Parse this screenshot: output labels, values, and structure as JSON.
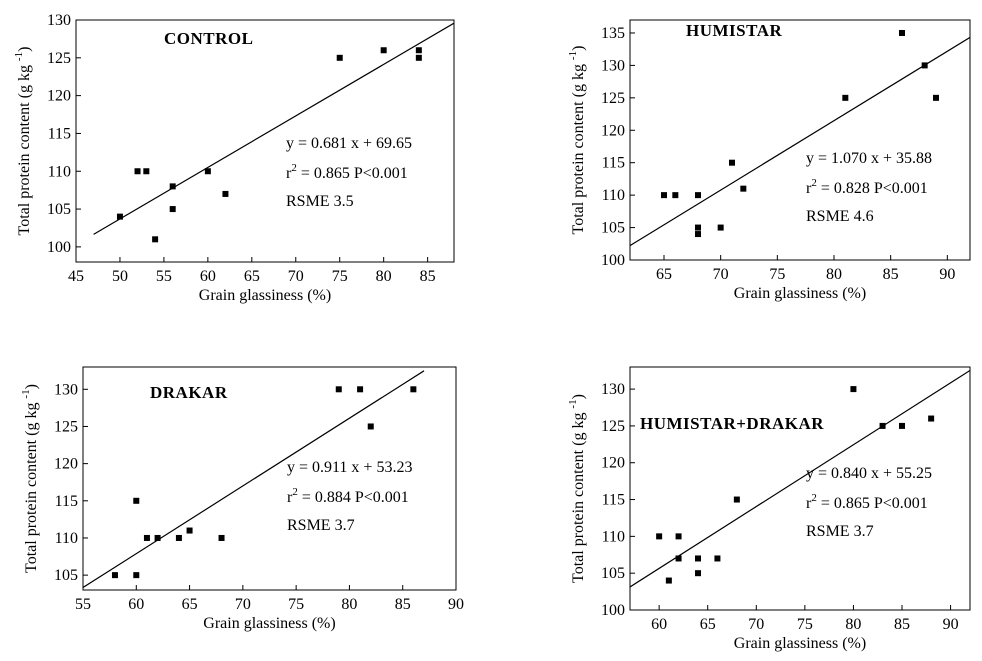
{
  "chart_data": [
    {
      "type": "scatter",
      "title": "CONTROL",
      "xlabel": "Grain glassiness (%)",
      "ylabel": "Total protein content (g kg",
      "ylabel_sup": "-1",
      "ylabel_close": ")",
      "xlim": [
        45,
        88
      ],
      "ylim": [
        98,
        130
      ],
      "xticks": [
        45,
        50,
        55,
        60,
        65,
        70,
        75,
        80,
        85
      ],
      "yticks": [
        100,
        105,
        110,
        115,
        120,
        125,
        130
      ],
      "points": [
        [
          50,
          104
        ],
        [
          52,
          110
        ],
        [
          53,
          110
        ],
        [
          54,
          101
        ],
        [
          56,
          108
        ],
        [
          56,
          105
        ],
        [
          60,
          110
        ],
        [
          62,
          107
        ],
        [
          75,
          125
        ],
        [
          80,
          126
        ],
        [
          84,
          126
        ],
        [
          84,
          125
        ]
      ],
      "fit": {
        "slope": 0.681,
        "intercept": 69.65,
        "x_range": [
          47,
          88
        ]
      },
      "equation": "y = 0.681 x + 69.65",
      "r2_prefix": "r",
      "r2_sup": "2",
      "r2_rest": " = 0.865  P<0.001",
      "rsme": "RSME 3.5",
      "grid": false
    },
    {
      "type": "scatter",
      "title": "HUMISTAR",
      "xlabel": "Grain glassiness (%)",
      "ylabel": "Total protein content (g kg",
      "ylabel_sup": "-1",
      "ylabel_close": ")",
      "xlim": [
        62,
        92
      ],
      "ylim": [
        100,
        137
      ],
      "xticks": [
        65,
        70,
        75,
        80,
        85,
        90
      ],
      "yticks": [
        100,
        105,
        110,
        115,
        120,
        125,
        130,
        135
      ],
      "points": [
        [
          65,
          110
        ],
        [
          66,
          110
        ],
        [
          68,
          110
        ],
        [
          68,
          105
        ],
        [
          68,
          104
        ],
        [
          70,
          105
        ],
        [
          71,
          115
        ],
        [
          72,
          111
        ],
        [
          81,
          125
        ],
        [
          86,
          135
        ],
        [
          88,
          130
        ],
        [
          89,
          125
        ]
      ],
      "fit": {
        "slope": 1.07,
        "intercept": 35.88,
        "x_range": [
          62,
          92
        ]
      },
      "equation": "y = 1.070 x + 35.88",
      "r2_prefix": "r",
      "r2_sup": "2",
      "r2_rest": " = 0.828  P<0.001",
      "rsme": "RSME 4.6",
      "grid": false
    },
    {
      "type": "scatter",
      "title": "DRAKAR",
      "xlabel": "Grain glassiness (%)",
      "ylabel": "Total protein content (g kg",
      "ylabel_sup": "-1",
      "ylabel_close": ")",
      "xlim": [
        55,
        90
      ],
      "ylim": [
        103,
        133
      ],
      "xticks": [
        55,
        60,
        65,
        70,
        75,
        80,
        85,
        90
      ],
      "yticks": [
        105,
        110,
        115,
        120,
        125,
        130
      ],
      "points": [
        [
          58,
          105
        ],
        [
          60,
          105
        ],
        [
          60,
          115
        ],
        [
          61,
          110
        ],
        [
          62,
          110
        ],
        [
          64,
          110
        ],
        [
          65,
          111
        ],
        [
          68,
          110
        ],
        [
          79,
          130
        ],
        [
          81,
          130
        ],
        [
          82,
          125
        ],
        [
          86,
          130
        ]
      ],
      "fit": {
        "slope": 0.911,
        "intercept": 53.23,
        "x_range": [
          55,
          87
        ]
      },
      "equation": "y = 0.911 x + 53.23",
      "r2_prefix": "r",
      "r2_sup": "2",
      "r2_rest": " = 0.884  P<0.001",
      "rsme": "RSME 3.7",
      "grid": false
    },
    {
      "type": "scatter",
      "title": "HUMISTAR+DRAKAR",
      "xlabel": "Grain glassiness (%)",
      "ylabel": "Total protein content (g kg",
      "ylabel_sup": "-1",
      "ylabel_close": ")",
      "xlim": [
        57,
        92
      ],
      "ylim": [
        100,
        133
      ],
      "xticks": [
        60,
        65,
        70,
        75,
        80,
        85,
        90
      ],
      "yticks": [
        100,
        105,
        110,
        115,
        120,
        125,
        130
      ],
      "points": [
        [
          60,
          110
        ],
        [
          61,
          104
        ],
        [
          62,
          110
        ],
        [
          62,
          107
        ],
        [
          64,
          107
        ],
        [
          64,
          105
        ],
        [
          66,
          107
        ],
        [
          68,
          115
        ],
        [
          80,
          130
        ],
        [
          83,
          125
        ],
        [
          85,
          125
        ],
        [
          88,
          126
        ]
      ],
      "fit": {
        "slope": 0.84,
        "intercept": 55.25,
        "x_range": [
          57,
          92
        ]
      },
      "equation": "y = 0.840 x + 55.25",
      "r2_prefix": "r",
      "r2_sup": "2",
      "r2_rest": " = 0.865  P<0.001",
      "rsme": "RSME 3.7",
      "grid": false
    }
  ]
}
